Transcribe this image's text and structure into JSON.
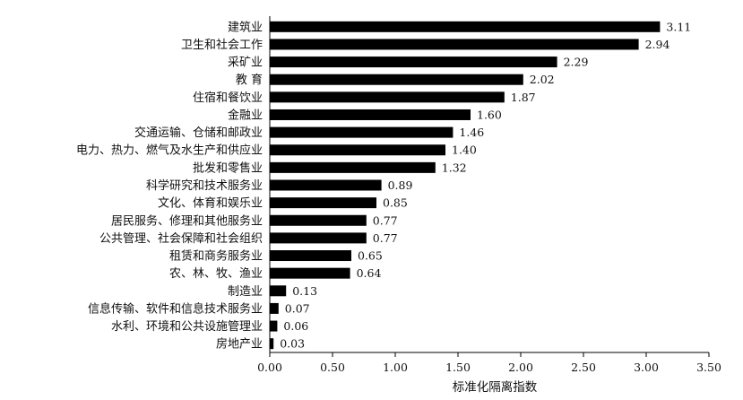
{
  "chart_data": {
    "type": "bar",
    "orientation": "horizontal",
    "categories": [
      "建筑业",
      "卫生和社会工作",
      "采矿业",
      "教 育",
      "住宿和餐饮业",
      "金融业",
      "交通运输、仓储和邮政业",
      "电力、热力、燃气及水生产和供应业",
      "批发和零售业",
      "科学研究和技术服务业",
      "文化、体育和娱乐业",
      "居民服务、修理和其他服务业",
      "公共管理、社会保障和社会组织",
      "租赁和商务服务业",
      "农、林、牧、渔业",
      "制造业",
      "信息传输、软件和信息技术服务业",
      "水利、环境和公共设施管理业",
      "房地产业"
    ],
    "values": [
      3.11,
      2.94,
      2.29,
      2.02,
      1.87,
      1.6,
      1.46,
      1.4,
      1.32,
      0.89,
      0.85,
      0.77,
      0.77,
      0.65,
      0.64,
      0.13,
      0.07,
      0.06,
      0.03
    ],
    "value_labels": [
      "3.11",
      "2.94",
      "2.29",
      "2.02",
      "1.87",
      "1.60",
      "1.46",
      "1.40",
      "1.32",
      "0.89",
      "0.85",
      "0.77",
      "0.77",
      "0.65",
      "0.64",
      "0.13",
      "0.07",
      "0.06",
      "0.03"
    ],
    "title": "",
    "xlabel": "标准化隔离指数",
    "ylabel": "",
    "xlim": [
      0,
      3.5
    ],
    "xticks": [
      0,
      0.5,
      1.0,
      1.5,
      2.0,
      2.5,
      3.0,
      3.5
    ],
    "xtick_labels": [
      "0.00",
      "0.50",
      "1.00",
      "1.50",
      "2.00",
      "2.50",
      "3.00",
      "3.50"
    ],
    "grid": false,
    "legend": "none",
    "bar_color": "#000000"
  }
}
